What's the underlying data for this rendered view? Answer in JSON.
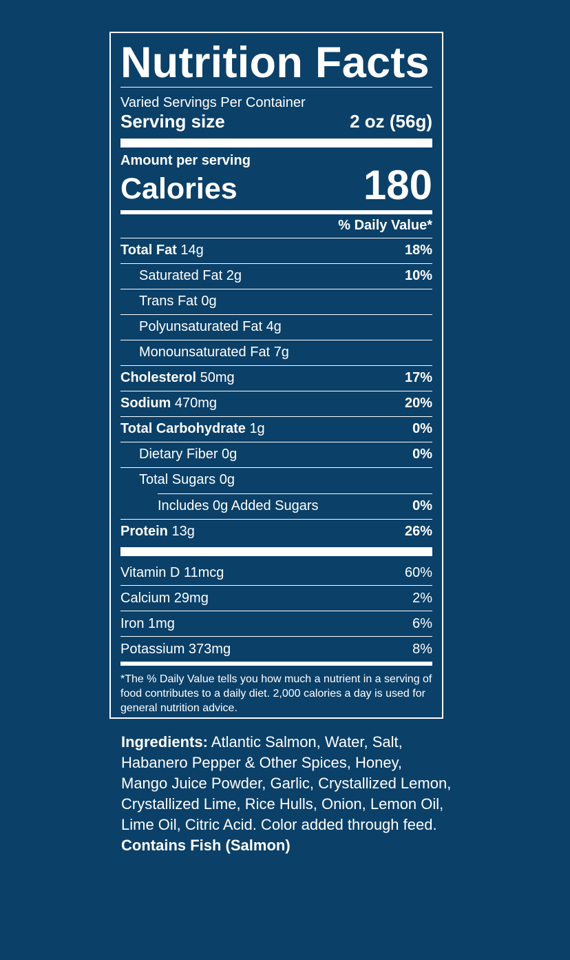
{
  "label": {
    "title": "Nutrition Facts",
    "servings_per_container": "Varied Servings Per Container",
    "serving_size_label": "Serving size",
    "serving_size_value": "2 oz (56g)",
    "amount_per_serving": "Amount per serving",
    "calories_label": "Calories",
    "calories_value": "180",
    "daily_value_header": "% Daily Value*",
    "nutrients": [
      {
        "name": "Total Fat",
        "amount": "14g",
        "dv": "18%",
        "bold": true,
        "indent": 0
      },
      {
        "name": "Saturated Fat",
        "amount": "2g",
        "dv": "10%",
        "bold": false,
        "indent": 1
      },
      {
        "name": "Trans Fat",
        "amount": "0g",
        "dv": "",
        "bold": false,
        "indent": 1
      },
      {
        "name": "Polyunsaturated Fat",
        "amount": "4g",
        "dv": "",
        "bold": false,
        "indent": 1
      },
      {
        "name": "Monounsaturated Fat",
        "amount": "7g",
        "dv": "",
        "bold": false,
        "indent": 1
      },
      {
        "name": "Cholesterol",
        "amount": "50mg",
        "dv": "17%",
        "bold": true,
        "indent": 0
      },
      {
        "name": "Sodium",
        "amount": "470mg",
        "dv": "20%",
        "bold": true,
        "indent": 0
      },
      {
        "name": "Total Carbohydrate",
        "amount": "1g",
        "dv": "0%",
        "bold": true,
        "indent": 0
      },
      {
        "name": "Dietary Fiber",
        "amount": "0g",
        "dv": "0%",
        "bold": false,
        "indent": 1
      },
      {
        "name": "Total Sugars",
        "amount": "0g",
        "dv": "",
        "bold": false,
        "indent": 1
      },
      {
        "name": "Includes 0g Added Sugars",
        "amount": "",
        "dv": "0%",
        "bold": false,
        "indent": 2
      },
      {
        "name": "Protein",
        "amount": "13g",
        "dv": "26%",
        "bold": true,
        "indent": 0
      }
    ],
    "vitamins": [
      {
        "name": "Vitamin D 11mcg",
        "dv": "60%"
      },
      {
        "name": "Calcium 29mg",
        "dv": "2%"
      },
      {
        "name": "Iron 1mg",
        "dv": "6%"
      },
      {
        "name": "Potassium 373mg",
        "dv": "8%"
      }
    ],
    "footnote": "*The % Daily Value tells you how much a nutrient in a serving of food contributes to a daily diet. 2,000 calories a day is used for general nutrition advice."
  },
  "ingredients": {
    "label": "Ingredients:",
    "text": "Atlantic Salmon, Water, Salt, Habanero Pepper & Other Spices, Honey, Mango Juice Powder, Garlic, Crystallized Lemon, Crystallized Lime, Rice Hulls, Onion, Lemon Oil, Lime Oil, Citric Acid. Color added through feed.",
    "allergens": "Contains Fish (Salmon)"
  },
  "colors": {
    "background": "#0b4068",
    "foreground": "#ffffff"
  }
}
